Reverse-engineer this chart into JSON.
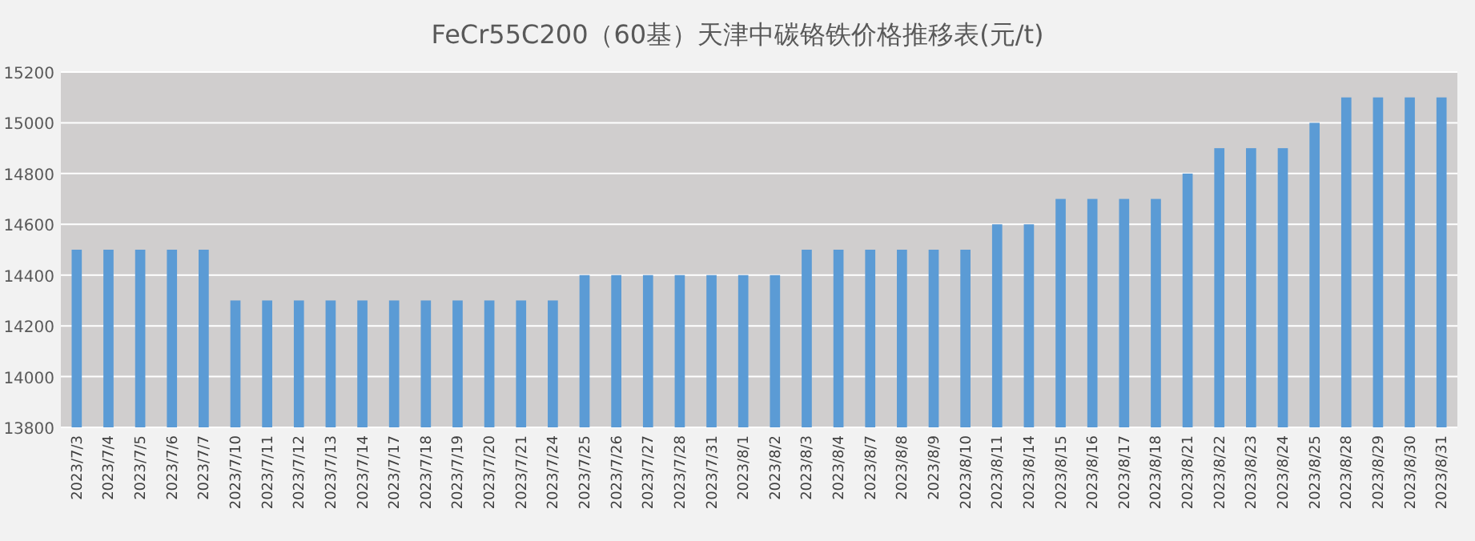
{
  "chart_data": {
    "type": "bar",
    "title": "FeCr55C200（60基）天津中碳铬铁价格推移表(元/t)",
    "categories": [
      "2023/7/3",
      "2023/7/4",
      "2023/7/5",
      "2023/7/6",
      "2023/7/7",
      "2023/7/10",
      "2023/7/11",
      "2023/7/12",
      "2023/7/13",
      "2023/7/14",
      "2023/7/17",
      "2023/7/18",
      "2023/7/19",
      "2023/7/20",
      "2023/7/21",
      "2023/7/24",
      "2023/7/25",
      "2023/7/26",
      "2023/7/27",
      "2023/7/28",
      "2023/7/31",
      "2023/8/1",
      "2023/8/2",
      "2023/8/3",
      "2023/8/4",
      "2023/8/7",
      "2023/8/8",
      "2023/8/9",
      "2023/8/10",
      "2023/8/11",
      "2023/8/14",
      "2023/8/15",
      "2023/8/16",
      "2023/8/17",
      "2023/8/18",
      "2023/8/21",
      "2023/8/22",
      "2023/8/23",
      "2023/8/24",
      "2023/8/25",
      "2023/8/28",
      "2023/8/29",
      "2023/8/30",
      "2023/8/31"
    ],
    "values": [
      14500,
      14500,
      14500,
      14500,
      14500,
      14300,
      14300,
      14300,
      14300,
      14300,
      14300,
      14300,
      14300,
      14300,
      14300,
      14300,
      14400,
      14400,
      14400,
      14400,
      14400,
      14400,
      14400,
      14500,
      14500,
      14500,
      14500,
      14500,
      14500,
      14600,
      14600,
      14700,
      14700,
      14700,
      14700,
      14800,
      14900,
      14900,
      14900,
      15000,
      15100,
      15100,
      15100,
      15100
    ],
    "color": "#5b9bd5",
    "ylim": [
      13800,
      15200
    ],
    "yticks": [
      13800,
      14000,
      14200,
      14400,
      14600,
      14800,
      15000,
      15200
    ],
    "grid": "y"
  }
}
